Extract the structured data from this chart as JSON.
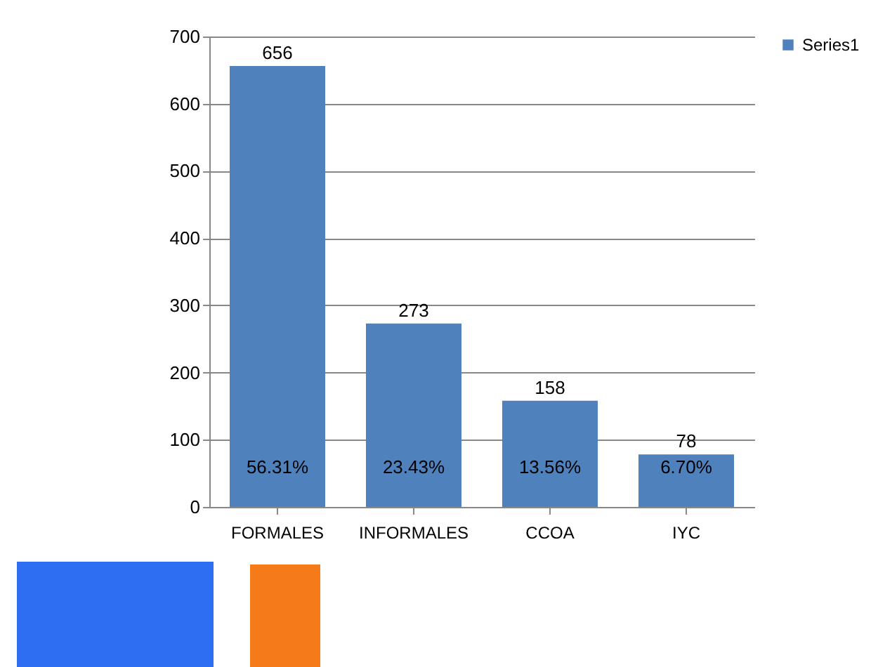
{
  "chart_data": {
    "type": "bar",
    "categories": [
      "FORMALES",
      "INFORMALES",
      "CCOA",
      "IYC"
    ],
    "series": [
      {
        "name": "Series1",
        "color": "#4f81bd",
        "values": [
          656,
          273,
          158,
          78
        ]
      }
    ],
    "ylim": [
      0,
      700
    ],
    "yticks": [
      0,
      100,
      200,
      300,
      400,
      500,
      600,
      700
    ],
    "grid": "y",
    "legend": "right",
    "data_labels": true,
    "annotations": [
      "56.31%",
      "23.43%",
      "13.56%",
      "6.70%"
    ]
  }
}
